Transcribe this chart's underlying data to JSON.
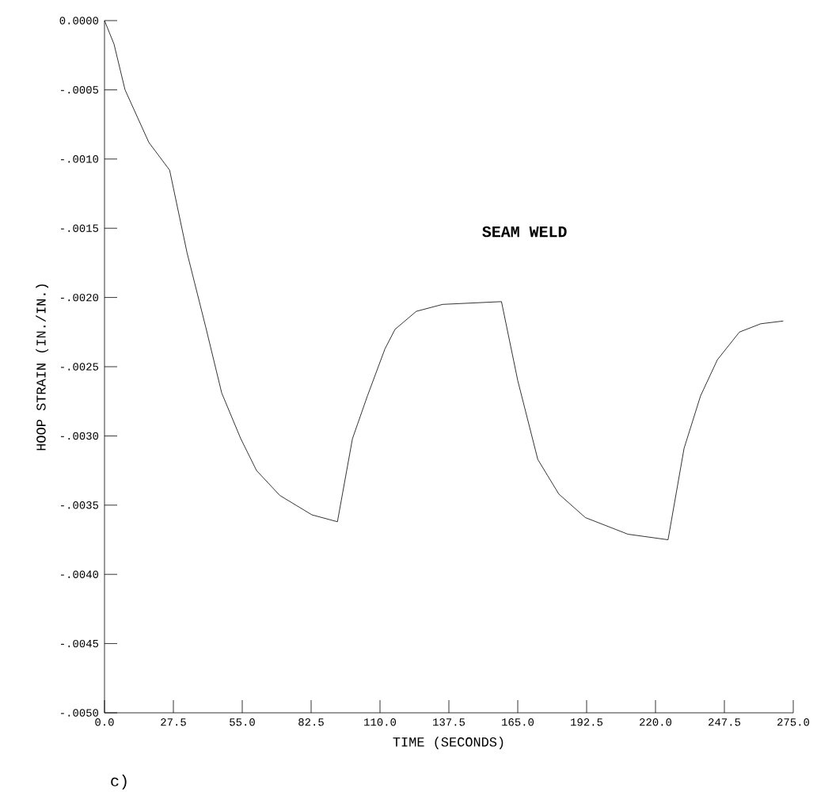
{
  "chart_data": {
    "type": "line",
    "xlabel": "TIME (SECONDS)",
    "ylabel": "HOOP STRAIN (IN./IN.)",
    "annotations": [
      "SEAM WELD",
      "c)"
    ],
    "x": [
      0,
      3.8,
      8.2,
      17.7,
      26,
      33,
      40.5,
      46.8,
      54.4,
      60.7,
      70,
      82.8,
      93,
      99,
      105,
      112,
      116,
      124.5,
      135,
      158.5,
      165,
      173,
      181.4,
      192,
      209,
      225,
      231.4,
      238,
      244.7,
      253.5,
      262,
      271
    ],
    "series": [
      {
        "color": "#000000",
        "values": [
          0,
          -0.00017,
          -0.0005,
          -0.00088,
          -0.00108,
          -0.00168,
          -0.00222,
          -0.00269,
          -0.00302,
          -0.00325,
          -0.00343,
          -0.00357,
          -0.00362,
          -0.00302,
          -0.00271,
          -0.00237,
          -0.00223,
          -0.0021,
          -0.00205,
          -0.00203,
          -0.0026,
          -0.00317,
          -0.00342,
          -0.00359,
          -0.00371,
          -0.00375,
          -0.00309,
          -0.00271,
          -0.00245,
          -0.00225,
          -0.00219,
          -0.00217
        ]
      }
    ],
    "xlim": [
      0,
      275
    ],
    "ylim": [
      -0.005,
      0
    ],
    "xticks": [
      {
        "value": 0,
        "label": "0.0"
      },
      {
        "value": 27.5,
        "label": "27.5"
      },
      {
        "value": 55,
        "label": "55.0"
      },
      {
        "value": 82.5,
        "label": "82.5"
      },
      {
        "value": 110,
        "label": "110.0"
      },
      {
        "value": 137.5,
        "label": "137.5"
      },
      {
        "value": 165,
        "label": "165.0"
      },
      {
        "value": 192.5,
        "label": "192.5"
      },
      {
        "value": 220,
        "label": "220.0"
      },
      {
        "value": 247.5,
        "label": "247.5"
      },
      {
        "value": 275,
        "label": "275.0"
      }
    ],
    "yticks": [
      {
        "value": 0,
        "label": "0.0000"
      },
      {
        "value": -0.0005,
        "label": "-.0005"
      },
      {
        "value": -0.001,
        "label": "-.0010"
      },
      {
        "value": -0.0015,
        "label": "-.0015"
      },
      {
        "value": -0.002,
        "label": "-.0020"
      },
      {
        "value": -0.0025,
        "label": "-.0025"
      },
      {
        "value": -0.003,
        "label": "-.0030"
      },
      {
        "value": -0.0035,
        "label": "-.0035"
      },
      {
        "value": -0.004,
        "label": "-.0040"
      },
      {
        "value": -0.0045,
        "label": "-.0045"
      },
      {
        "value": -0.005,
        "label": "-.0050"
      }
    ]
  }
}
